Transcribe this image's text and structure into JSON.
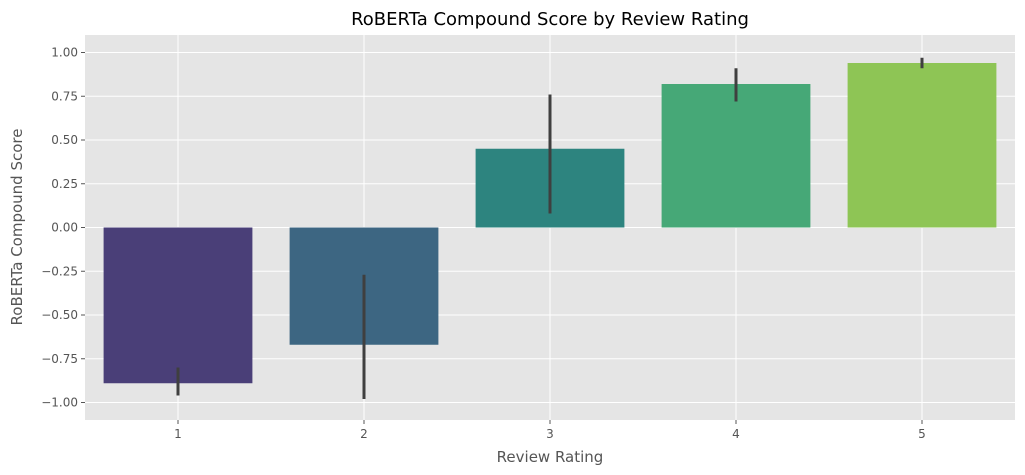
{
  "chart_data": {
    "type": "bar",
    "title": "RoBERTa Compound Score by Review Rating",
    "xlabel": "Review Rating",
    "ylabel": "RoBERTa Compound Score",
    "categories": [
      "1",
      "2",
      "3",
      "4",
      "5"
    ],
    "values": [
      -0.89,
      -0.67,
      0.45,
      0.82,
      0.94
    ],
    "error_bars": [
      {
        "low": -0.96,
        "high": -0.8
      },
      {
        "low": -0.98,
        "high": -0.27
      },
      {
        "low": 0.08,
        "high": 0.76
      },
      {
        "low": 0.72,
        "high": 0.91
      },
      {
        "low": 0.91,
        "high": 0.97
      }
    ],
    "ylim": [
      -1.1,
      1.1
    ],
    "yticks": [
      1.0,
      0.75,
      0.5,
      0.25,
      0.0,
      -0.25,
      -0.5,
      -0.75,
      -1.0
    ],
    "ytick_labels": [
      "1.00",
      "0.75",
      "0.50",
      "0.25",
      "0.00",
      "−0.25",
      "−0.50",
      "−0.75",
      "−1.00"
    ],
    "grid": true,
    "colors": {
      "bars": [
        "#4a3f78",
        "#3d6682",
        "#2d847f",
        "#46a877",
        "#8ec555"
      ],
      "error_bar": "#3f3f3f",
      "plot_background": "#e5e5e5",
      "grid": "#ffffff"
    }
  }
}
